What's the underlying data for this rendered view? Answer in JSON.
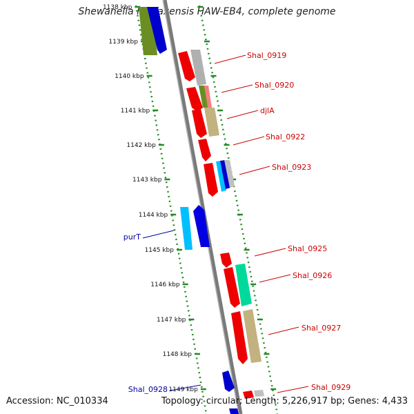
{
  "title": "Shewanella halifaxensis HAW-EB4, complete genome",
  "footer": {
    "accession": "Accession: NC_010334",
    "summary": "Topology: circular; Length: 5,226,917 bp; Genes: 4,433"
  },
  "colors": {
    "backbone": "#8a8a8a",
    "ruler": "#228b22",
    "forward_label": "#cc0000",
    "reverse_label": "#000099"
  },
  "ruler_ticks": [
    "1138 kbp",
    "1139 kbp",
    "1140 kbp",
    "1141 kbp",
    "1142 kbp",
    "1143 kbp",
    "1144 kbp",
    "1145 kbp",
    "1146 kbp",
    "1147 kbp",
    "1148 kbp",
    "1149 kbp"
  ],
  "gene_labels": [
    {
      "text": "Shal_0919",
      "strand": "forward"
    },
    {
      "text": "Shal_0920",
      "strand": "forward"
    },
    {
      "text": "djlA",
      "strand": "forward"
    },
    {
      "text": "Shal_0922",
      "strand": "forward"
    },
    {
      "text": "Shal_0923",
      "strand": "forward"
    },
    {
      "text": "purT",
      "strand": "reverse"
    },
    {
      "text": "Shal_0925",
      "strand": "forward"
    },
    {
      "text": "Shal_0926",
      "strand": "forward"
    },
    {
      "text": "Shal_0927",
      "strand": "forward"
    },
    {
      "text": "Shal_0928",
      "strand": "reverse"
    },
    {
      "text": "Shal_0929",
      "strand": "forward"
    }
  ]
}
